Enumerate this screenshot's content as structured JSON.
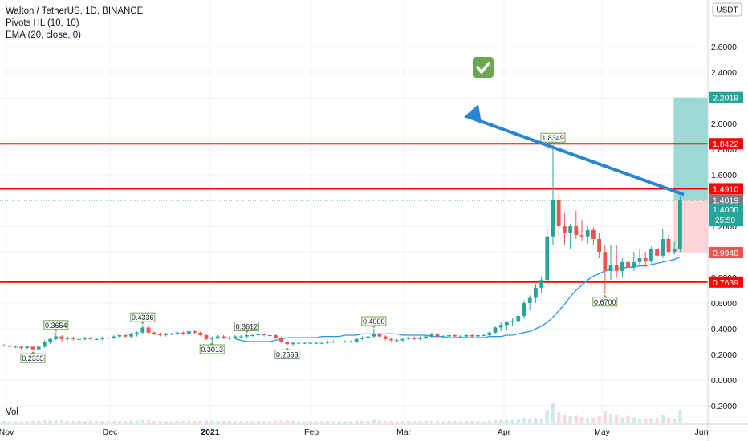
{
  "legend": {
    "symbol": "Walton / TetherUS, 1D, BINANCE",
    "indicator_1": "Pivots HL (10, 10)",
    "indicator_2": "EMA (20, close, 0)",
    "volume": "Vol"
  },
  "currency": "USDT",
  "colors": {
    "up": "#26a69a",
    "down": "#ef5350",
    "ema": "#2196f3",
    "level": "#ff0000",
    "target_zone": "#91d5cf",
    "stop_zone": "#fcd6d6",
    "arrow": "#2a86d4",
    "check": "#6aa84f",
    "pivot_label_border": "#6aa84f"
  },
  "chart_data": {
    "type": "candlestick",
    "ylim": [
      -0.3,
      2.72
    ],
    "y_ticks": [
      "2.6000",
      "2.4000",
      "2.2000",
      "2.0000",
      "1.8000",
      "1.6000",
      "1.2000",
      "1.0000",
      "0.8000",
      "0.6000",
      "0.4000",
      "0.2000",
      "0.0000",
      "-0.2000"
    ],
    "x_ticks": [
      "Nov",
      "Dec",
      "2021",
      "Feb",
      "Mar",
      "Apr",
      "May",
      "Jun"
    ],
    "date_range": [
      "2020-10-31",
      "2021-03-11"
    ],
    "candles": [
      [
        0.27,
        0.28,
        0.26,
        0.27
      ],
      [
        0.27,
        0.27,
        0.25,
        0.26
      ],
      [
        0.26,
        0.27,
        0.25,
        0.26
      ],
      [
        0.26,
        0.26,
        0.24,
        0.25
      ],
      [
        0.25,
        0.27,
        0.24,
        0.26
      ],
      [
        0.26,
        0.26,
        0.23,
        0.24
      ],
      [
        0.24,
        0.27,
        0.24,
        0.26
      ],
      [
        0.26,
        0.31,
        0.25,
        0.3
      ],
      [
        0.3,
        0.33,
        0.28,
        0.32
      ],
      [
        0.32,
        0.37,
        0.31,
        0.34
      ],
      [
        0.34,
        0.35,
        0.3,
        0.32
      ],
      [
        0.32,
        0.34,
        0.31,
        0.33
      ],
      [
        0.33,
        0.34,
        0.31,
        0.32
      ],
      [
        0.32,
        0.33,
        0.3,
        0.32
      ],
      [
        0.32,
        0.34,
        0.31,
        0.33
      ],
      [
        0.33,
        0.34,
        0.31,
        0.32
      ],
      [
        0.32,
        0.33,
        0.31,
        0.32
      ],
      [
        0.32,
        0.34,
        0.31,
        0.33
      ],
      [
        0.33,
        0.34,
        0.32,
        0.33
      ],
      [
        0.33,
        0.35,
        0.32,
        0.34
      ],
      [
        0.34,
        0.36,
        0.33,
        0.35
      ],
      [
        0.35,
        0.36,
        0.33,
        0.34
      ],
      [
        0.34,
        0.37,
        0.33,
        0.36
      ],
      [
        0.36,
        0.38,
        0.34,
        0.37
      ],
      [
        0.37,
        0.43,
        0.36,
        0.41
      ],
      [
        0.41,
        0.42,
        0.36,
        0.37
      ],
      [
        0.37,
        0.38,
        0.35,
        0.36
      ],
      [
        0.36,
        0.37,
        0.34,
        0.35
      ],
      [
        0.35,
        0.37,
        0.34,
        0.36
      ],
      [
        0.36,
        0.37,
        0.35,
        0.36
      ],
      [
        0.36,
        0.38,
        0.35,
        0.37
      ],
      [
        0.37,
        0.38,
        0.35,
        0.36
      ],
      [
        0.36,
        0.39,
        0.35,
        0.38
      ],
      [
        0.38,
        0.39,
        0.36,
        0.37
      ],
      [
        0.37,
        0.38,
        0.34,
        0.35
      ],
      [
        0.35,
        0.36,
        0.31,
        0.32
      ],
      [
        0.32,
        0.34,
        0.3,
        0.33
      ],
      [
        0.33,
        0.35,
        0.32,
        0.34
      ],
      [
        0.34,
        0.35,
        0.32,
        0.33
      ],
      [
        0.33,
        0.34,
        0.31,
        0.33
      ],
      [
        0.33,
        0.35,
        0.32,
        0.34
      ],
      [
        0.34,
        0.35,
        0.33,
        0.34
      ],
      [
        0.34,
        0.36,
        0.33,
        0.35
      ],
      [
        0.35,
        0.36,
        0.34,
        0.35
      ],
      [
        0.35,
        0.37,
        0.34,
        0.36
      ],
      [
        0.36,
        0.36,
        0.34,
        0.35
      ],
      [
        0.35,
        0.36,
        0.34,
        0.35
      ],
      [
        0.35,
        0.36,
        0.32,
        0.33
      ],
      [
        0.33,
        0.34,
        0.29,
        0.3
      ],
      [
        0.3,
        0.31,
        0.26,
        0.28
      ],
      [
        0.28,
        0.3,
        0.27,
        0.29
      ],
      [
        0.29,
        0.3,
        0.28,
        0.29
      ],
      [
        0.29,
        0.3,
        0.28,
        0.29
      ],
      [
        0.29,
        0.3,
        0.28,
        0.29
      ],
      [
        0.29,
        0.3,
        0.28,
        0.29
      ],
      [
        0.29,
        0.3,
        0.28,
        0.29
      ],
      [
        0.29,
        0.31,
        0.28,
        0.3
      ],
      [
        0.3,
        0.31,
        0.29,
        0.3
      ],
      [
        0.3,
        0.31,
        0.29,
        0.3
      ],
      [
        0.3,
        0.31,
        0.29,
        0.3
      ],
      [
        0.3,
        0.31,
        0.29,
        0.3
      ],
      [
        0.3,
        0.33,
        0.29,
        0.32
      ],
      [
        0.32,
        0.34,
        0.31,
        0.33
      ],
      [
        0.33,
        0.35,
        0.32,
        0.34
      ],
      [
        0.34,
        0.4,
        0.33,
        0.36
      ],
      [
        0.36,
        0.37,
        0.33,
        0.34
      ],
      [
        0.34,
        0.35,
        0.31,
        0.32
      ],
      [
        0.32,
        0.33,
        0.3,
        0.31
      ],
      [
        0.31,
        0.32,
        0.3,
        0.31
      ],
      [
        0.31,
        0.33,
        0.3,
        0.32
      ],
      [
        0.32,
        0.34,
        0.31,
        0.33
      ],
      [
        0.33,
        0.34,
        0.31,
        0.32
      ],
      [
        0.32,
        0.34,
        0.31,
        0.33
      ],
      [
        0.33,
        0.35,
        0.32,
        0.34
      ],
      [
        0.34,
        0.37,
        0.33,
        0.36
      ],
      [
        0.36,
        0.37,
        0.33,
        0.34
      ],
      [
        0.34,
        0.35,
        0.33,
        0.34
      ],
      [
        0.34,
        0.36,
        0.33,
        0.35
      ],
      [
        0.35,
        0.36,
        0.33,
        0.34
      ],
      [
        0.34,
        0.35,
        0.33,
        0.34
      ],
      [
        0.34,
        0.36,
        0.33,
        0.35
      ],
      [
        0.35,
        0.36,
        0.33,
        0.34
      ],
      [
        0.34,
        0.36,
        0.33,
        0.35
      ],
      [
        0.35,
        0.36,
        0.34,
        0.35
      ],
      [
        0.35,
        0.38,
        0.34,
        0.37
      ],
      [
        0.37,
        0.42,
        0.36,
        0.41
      ],
      [
        0.41,
        0.45,
        0.38,
        0.43
      ],
      [
        0.43,
        0.46,
        0.39,
        0.45
      ],
      [
        0.45,
        0.48,
        0.42,
        0.46
      ],
      [
        0.46,
        0.52,
        0.44,
        0.5
      ],
      [
        0.5,
        0.62,
        0.48,
        0.6
      ],
      [
        0.6,
        0.66,
        0.55,
        0.64
      ],
      [
        0.64,
        0.75,
        0.6,
        0.72
      ],
      [
        0.72,
        0.8,
        0.68,
        0.78
      ],
      [
        0.78,
        1.18,
        0.76,
        1.12
      ],
      [
        1.12,
        1.83,
        1.05,
        1.4
      ],
      [
        1.4,
        1.45,
        1.12,
        1.2
      ],
      [
        1.2,
        1.3,
        1.05,
        1.15
      ],
      [
        1.15,
        1.22,
        1.02,
        1.2
      ],
      [
        1.2,
        1.32,
        1.1,
        1.13
      ],
      [
        1.13,
        1.25,
        1.08,
        1.12
      ],
      [
        1.12,
        1.2,
        1.06,
        1.17
      ],
      [
        1.17,
        1.19,
        1.05,
        1.1
      ],
      [
        1.1,
        1.15,
        0.95,
        1.0
      ],
      [
        1.0,
        1.05,
        0.67,
        0.85
      ],
      [
        0.85,
        1.05,
        0.78,
        0.9
      ],
      [
        0.9,
        1.05,
        0.8,
        0.85
      ],
      [
        0.85,
        0.95,
        0.8,
        0.92
      ],
      [
        0.92,
        0.97,
        0.76,
        0.88
      ],
      [
        0.88,
        1.0,
        0.85,
        0.92
      ],
      [
        0.92,
        1.02,
        0.9,
        0.95
      ],
      [
        0.95,
        1.0,
        0.88,
        0.93
      ],
      [
        0.93,
        1.04,
        0.91,
        1.02
      ],
      [
        1.02,
        1.08,
        0.94,
        0.97
      ],
      [
        0.97,
        1.18,
        0.95,
        1.1
      ],
      [
        1.1,
        1.13,
        0.98,
        1.0
      ],
      [
        1.0,
        1.08,
        0.98,
        1.02
      ],
      [
        1.02,
        1.43,
        1.0,
        1.4
      ]
    ],
    "ema": [
      0.32,
      0.31,
      0.3,
      0.3,
      0.3,
      0.3,
      0.3,
      0.31,
      0.32,
      0.33,
      0.33,
      0.33,
      0.33,
      0.33,
      0.33,
      0.34,
      0.34,
      0.34,
      0.34,
      0.35,
      0.35,
      0.35,
      0.36,
      0.36,
      0.36,
      0.36,
      0.36,
      0.36,
      0.36,
      0.35,
      0.35,
      0.35,
      0.35,
      0.35,
      0.34,
      0.34,
      0.34,
      0.33,
      0.33,
      0.33,
      0.33,
      0.33,
      0.33,
      0.33,
      0.34,
      0.34,
      0.34,
      0.35,
      0.35,
      0.36,
      0.37,
      0.38,
      0.4,
      0.42,
      0.45,
      0.49,
      0.54,
      0.59,
      0.65,
      0.7,
      0.74,
      0.78,
      0.81,
      0.83,
      0.85,
      0.86,
      0.87,
      0.87,
      0.88,
      0.88,
      0.89,
      0.89,
      0.9,
      0.91,
      0.92,
      0.93,
      0.94,
      0.96
    ],
    "pivots": [
      {
        "label": "0.2335",
        "price": 0.2335,
        "type": "low"
      },
      {
        "label": "0.3654",
        "price": 0.3654,
        "type": "high"
      },
      {
        "label": "0.4336",
        "price": 0.4336,
        "type": "high"
      },
      {
        "label": "0.3013",
        "price": 0.3013,
        "type": "low"
      },
      {
        "label": "0.3612",
        "price": 0.3612,
        "type": "high"
      },
      {
        "label": "0.2568",
        "price": 0.2568,
        "type": "low"
      },
      {
        "label": "0.4000",
        "price": 0.4,
        "type": "high"
      },
      {
        "label": "1.8349",
        "price": 1.8349,
        "type": "high"
      },
      {
        "label": "0.6700",
        "price": 0.67,
        "type": "low"
      }
    ],
    "levels": [
      {
        "label": "1.8422",
        "price": 1.8422
      },
      {
        "label": "1.4910",
        "price": 1.491
      },
      {
        "label": "0.7639",
        "price": 0.7639
      }
    ],
    "position": {
      "entry": 1.4,
      "target": 2.2019,
      "stop": 0.994,
      "target_label": "2.2019",
      "stop_label": "0.9940"
    },
    "last_price": {
      "label": "1.4019",
      "price": 1.4019
    },
    "current_price": {
      "label": "1.4000",
      "price": 1.4,
      "countdown": "25:50"
    }
  }
}
